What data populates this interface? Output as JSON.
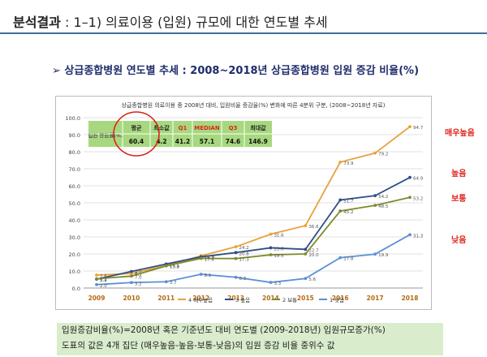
{
  "header": {
    "title_bold": "분석결과",
    "title_rest": " : 1–1) 의료이용 (입원) 규모에 대한 연도별 추세"
  },
  "subtitle": "➢ 상급종합병원 연도별 추세 : 2008~2018년 상급종합병원 입원 증감 비율(%)",
  "colors": {
    "very_high": "#e8a33c",
    "high": "#2f4e87",
    "medium": "#7d8b2c",
    "low": "#5b8fd8",
    "accent_red": "#e0241b"
  },
  "chart_data": {
    "type": "line",
    "title": "상급종합병원 의료이용 중 2008년 대비, 입원비율 증감율(%) 변화에 따른 4분위 구분, (2008~2018년 자료)",
    "x": [
      "2009",
      "2010",
      "2011",
      "2012",
      "2013",
      "2014",
      "2015",
      "2016",
      "2017",
      "2018"
    ],
    "ylim": [
      0,
      100
    ],
    "yticks": [
      "0.0",
      "10.0",
      "20.0",
      "30.0",
      "40.0",
      "50.0",
      "60.0",
      "70.0",
      "80.0",
      "90.0",
      "100.0"
    ],
    "series": [
      {
        "name": "4 매우높음",
        "side_label": "매우높음",
        "color": "#e8a33c",
        "values": [
          7.6,
          8.5,
          13.2,
          18.9,
          24.2,
          31.6,
          36.6,
          73.9,
          79.2,
          94.7
        ]
      },
      {
        "name": "3 높음",
        "side_label": "높음",
        "color": "#2f4e87",
        "values": [
          5.2,
          9.7,
          14.1,
          18.3,
          20.8,
          23.6,
          22.7,
          51.7,
          54.2,
          64.9
        ]
      },
      {
        "name": "2 보통",
        "side_label": "보통",
        "color": "#7d8b2c",
        "values": [
          5.4,
          7.0,
          13.0,
          17.4,
          17.3,
          19.5,
          20.0,
          45.2,
          48.5,
          53.2
        ]
      },
      {
        "name": "1 낮음",
        "side_label": "낮음",
        "color": "#5b8fd8",
        "values": [
          2.0,
          3.2,
          3.7,
          8.1,
          6.3,
          3.3,
          5.6,
          17.8,
          19.9,
          31.3
        ]
      }
    ],
    "stats_table": {
      "headers": [
        "평균",
        "최소값",
        "Q1",
        "MEDIAN",
        "Q3",
        "최대값"
      ],
      "row_label": "입원 증감율(%)",
      "values": [
        "60.4",
        "4.2",
        "41.2",
        "57.1",
        "74.6",
        "146.9"
      ]
    },
    "legend_position": "bottom"
  },
  "note": {
    "line1": "입원증감비율(%)=2008년 혹은 기준년도 대비 연도별 (2009-2018년) 입원규모증가(%)",
    "line2": "도표의 값은 4개 집단 (매우높음-높음-보통-낮음)의 입원 증감 비율 중위수 값"
  }
}
